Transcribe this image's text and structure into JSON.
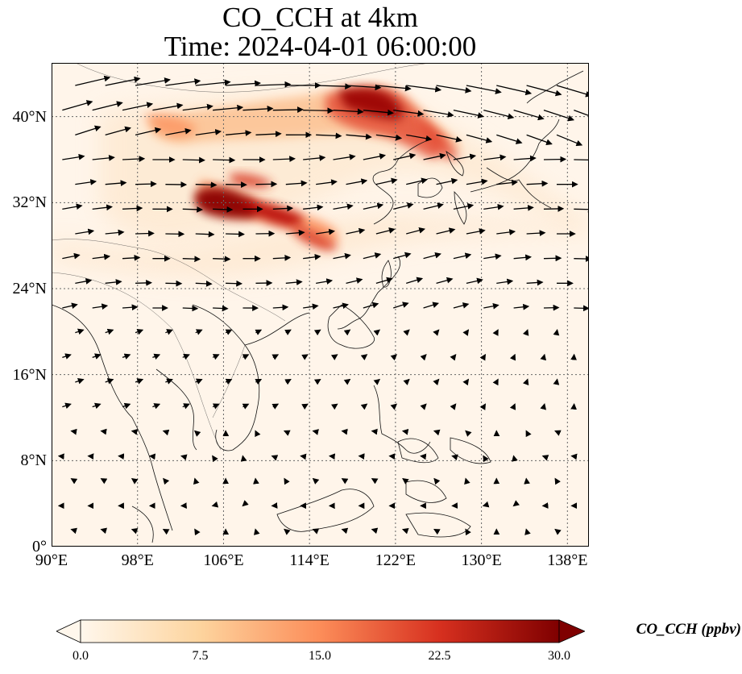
{
  "title": {
    "line1": "CO_CCH at 4km",
    "line2": "Time: 2024-04-01 06:00:00"
  },
  "axes": {
    "lat_ticks": [
      "0°",
      "8°N",
      "16°N",
      "24°N",
      "32°N",
      "40°N"
    ],
    "lon_ticks": [
      "90°E",
      "98°E",
      "106°E",
      "114°E",
      "122°E",
      "130°E",
      "138°E"
    ],
    "lat_range": [
      0,
      45
    ],
    "lon_range": [
      90,
      140
    ],
    "gridlines": "dotted",
    "lat_values": [
      0,
      8,
      16,
      24,
      32,
      40
    ],
    "lon_values": [
      90,
      98,
      106,
      114,
      122,
      130,
      138
    ]
  },
  "colorbar": {
    "label": "CO_CCH (ppbv)",
    "ticks": [
      "0.0",
      "7.5",
      "15.0",
      "22.5",
      "30.0"
    ],
    "min": 0,
    "max": 30,
    "extend": "both",
    "colormap": "OrRd",
    "colors": [
      "#fff7ec",
      "#fdd49e",
      "#fc8d59",
      "#d7301f",
      "#7f0000"
    ]
  },
  "map": {
    "variable": "CO_CCH",
    "level": "4km",
    "plumes": [
      {
        "lon": 118.5,
        "lat": 41.2,
        "value": 30
      },
      {
        "lon": 121.0,
        "lat": 40.5,
        "value": 28
      },
      {
        "lon": 124.5,
        "lat": 38.5,
        "value": 20
      },
      {
        "lon": 106.5,
        "lat": 31.5,
        "value": 30
      },
      {
        "lon": 109.0,
        "lat": 31.0,
        "value": 26
      },
      {
        "lon": 111.0,
        "lat": 30.5,
        "value": 22
      },
      {
        "lon": 113.0,
        "lat": 28.5,
        "value": 18
      },
      {
        "lon": 110.0,
        "lat": 34.0,
        "value": 20
      },
      {
        "lon": 104.0,
        "lat": 38.5,
        "value": 14
      },
      {
        "lon": 101.0,
        "lat": 39.5,
        "value": 12
      }
    ],
    "wind": "arrows"
  }
}
